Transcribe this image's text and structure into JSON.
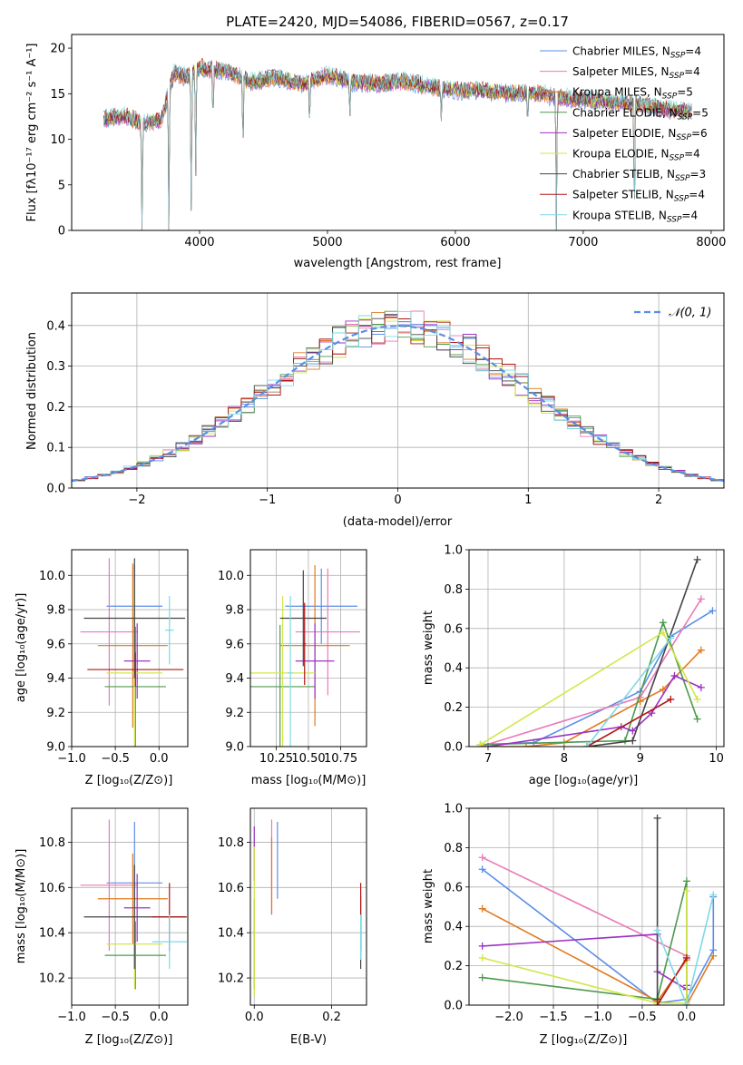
{
  "colors": {
    "chabrier_miles": "#5b8ee6",
    "salpeter_miles": "#e97ab8",
    "kroupa_miles": "#e07a1f",
    "chabrier_elodie": "#4c9a4c",
    "salpeter_elodie": "#9b32c2",
    "kroupa_elodie": "#d4e64a",
    "chabrier_stelib": "#444444",
    "salpeter_stelib": "#b01515",
    "kroupa_stelib": "#7fd9e6",
    "normal_curve": "#5b8ee6"
  },
  "chart_data": [
    {
      "id": "spectrum",
      "type": "line",
      "title": "PLATE=2420, MJD=54086, FIBERID=0567, z=0.17",
      "xlabel": "wavelength [Angstrom, rest frame]",
      "ylabel": "Flux [fλ10⁻¹⁷ erg cm⁻² s⁻¹ A⁻¹]",
      "xlim": [
        3000,
        8100
      ],
      "ylim": [
        0,
        21.5
      ],
      "x_ticks": [
        4000,
        5000,
        6000,
        7000,
        8000
      ],
      "y_ticks": [
        0,
        5,
        10,
        15,
        20
      ],
      "grid": false,
      "legend_position": "right",
      "legend": [
        {
          "label": "Chabrier MILES, N",
          "sub": "SSP",
          "suffix": "=4",
          "color_key": "chabrier_miles"
        },
        {
          "label": "Salpeter MILES, N",
          "sub": "SSP",
          "suffix": "=4",
          "color_key": "salpeter_miles"
        },
        {
          "label": "Kroupa MILES, N",
          "sub": "SSP",
          "suffix": "=5",
          "color_key": "kroupa_miles"
        },
        {
          "label": "Chabrier ELODIE, N",
          "sub": "SSP",
          "suffix": "=5",
          "color_key": "chabrier_elodie"
        },
        {
          "label": "Salpeter ELODIE, N",
          "sub": "SSP",
          "suffix": "=6",
          "color_key": "salpeter_elodie"
        },
        {
          "label": "Kroupa ELODIE, N",
          "sub": "SSP",
          "suffix": "=4",
          "color_key": "kroupa_elodie"
        },
        {
          "label": "Chabrier STELIB, N",
          "sub": "SSP",
          "suffix": "=3",
          "color_key": "chabrier_stelib"
        },
        {
          "label": "Salpeter STELIB, N",
          "sub": "SSP",
          "suffix": "=4",
          "color_key": "salpeter_stelib"
        },
        {
          "label": "Kroupa STELIB, N",
          "sub": "SSP",
          "suffix": "=4",
          "color_key": "kroupa_stelib"
        }
      ],
      "continuum": [
        [
          3250,
          12.2
        ],
        [
          3400,
          12.6
        ],
        [
          3550,
          11.8
        ],
        [
          3700,
          12.1
        ],
        [
          3800,
          17.3
        ],
        [
          3900,
          16.8
        ],
        [
          4000,
          17.9
        ],
        [
          4200,
          17.5
        ],
        [
          4400,
          16.3
        ],
        [
          4600,
          16.8
        ],
        [
          4800,
          16.1
        ],
        [
          5000,
          17.0
        ],
        [
          5200,
          16.3
        ],
        [
          5400,
          16.1
        ],
        [
          5600,
          16.4
        ],
        [
          5800,
          15.8
        ],
        [
          6000,
          15.4
        ],
        [
          6200,
          15.4
        ],
        [
          6400,
          15.0
        ],
        [
          6600,
          15.2
        ],
        [
          6800,
          14.6
        ],
        [
          7000,
          14.4
        ],
        [
          7200,
          14.1
        ],
        [
          7400,
          13.9
        ],
        [
          7600,
          13.4
        ],
        [
          7850,
          13.0
        ]
      ],
      "absorption_lines": [
        {
          "x": 3550,
          "y": 0
        },
        {
          "x": 3760,
          "y": 0
        },
        {
          "x": 3935,
          "y": 0
        },
        {
          "x": 3970,
          "y": 6
        },
        {
          "x": 4105,
          "y": 11
        },
        {
          "x": 4340,
          "y": 8
        },
        {
          "x": 4860,
          "y": 11
        },
        {
          "x": 5175,
          "y": 12
        },
        {
          "x": 5890,
          "y": 12
        },
        {
          "x": 6565,
          "y": 11
        },
        {
          "x": 6790,
          "y": 0
        },
        {
          "x": 7400,
          "y": 0
        }
      ]
    },
    {
      "id": "residuals",
      "type": "bar",
      "xlabel": "(data-model)/error",
      "ylabel": "Normed distribution",
      "xlim": [
        -2.5,
        2.5
      ],
      "ylim": [
        0,
        0.48
      ],
      "x_ticks": [
        -2,
        -1,
        0,
        1,
        2
      ],
      "y_ticks": [
        0.0,
        0.1,
        0.2,
        0.3,
        0.4
      ],
      "grid": true,
      "bin_width": 0.1,
      "bin_start": -2.5,
      "legend": [
        {
          "label": "𝒩(0, 1)",
          "color_key": "normal_curve",
          "dashed": true
        }
      ],
      "legend_position": "top-right"
    },
    {
      "id": "age_vs_Z",
      "type": "scatter",
      "xlabel": "Z [log₁₀(Z/Z⊙)]",
      "ylabel": "age  [log₁₀(age/yr)]",
      "xlim": [
        -1.0,
        0.33
      ],
      "ylim": [
        9.0,
        10.15
      ],
      "x_ticks": [
        -1.0,
        -0.5,
        0.0
      ],
      "y_ticks": [
        9.0,
        9.2,
        9.4,
        9.6,
        9.8,
        10.0
      ],
      "grid": true,
      "points": [
        {
          "x": -0.28,
          "y": 9.82,
          "xerr": 0.32,
          "yerr": 0.24,
          "color_key": "chabrier_miles"
        },
        {
          "x": -0.57,
          "y": 9.67,
          "xerr": 0.33,
          "yerr": 0.43,
          "color_key": "salpeter_miles"
        },
        {
          "x": -0.3,
          "y": 9.59,
          "xerr": 0.4,
          "yerr": 0.48,
          "color_key": "kroupa_miles"
        },
        {
          "x": -0.27,
          "y": 9.35,
          "xerr": 0.35,
          "yerr": 0.35,
          "color_key": "chabrier_elodie"
        },
        {
          "x": -0.25,
          "y": 9.5,
          "xerr": 0.15,
          "yerr": 0.22,
          "color_key": "salpeter_elodie"
        },
        {
          "x": -0.28,
          "y": 9.43,
          "xerr": 0.32,
          "yerr": 0.54,
          "color_key": "kroupa_elodie"
        },
        {
          "x": -0.28,
          "y": 9.75,
          "xerr": 0.58,
          "yerr": 0.35,
          "color_key": "chabrier_stelib"
        },
        {
          "x": -0.27,
          "y": 9.45,
          "xerr": 0.55,
          "yerr": 0.1,
          "color_key": "salpeter_stelib"
        },
        {
          "x": 0.12,
          "y": 9.68,
          "xerr": 0.05,
          "yerr": 0.2,
          "color_key": "kroupa_stelib"
        }
      ]
    },
    {
      "id": "age_vs_mass",
      "type": "scatter",
      "xlabel": "mass [log₁₀(M/M⊙)]",
      "ylabel": "",
      "xlim": [
        10.05,
        10.95
      ],
      "ylim": [
        9.0,
        10.15
      ],
      "x_ticks": [
        10.25,
        10.5,
        10.75
      ],
      "y_ticks": [
        9.0,
        9.2,
        9.4,
        9.6,
        9.8,
        10.0
      ],
      "grid": true,
      "points": [
        {
          "x": 10.6,
          "y": 9.82,
          "xerr": 0.28,
          "yerr": 0.22,
          "color_key": "chabrier_miles"
        },
        {
          "x": 10.65,
          "y": 9.67,
          "xerr": 0.25,
          "yerr": 0.37,
          "color_key": "salpeter_miles"
        },
        {
          "x": 10.55,
          "y": 9.59,
          "xerr": 0.27,
          "yerr": 0.47,
          "color_key": "kroupa_miles"
        },
        {
          "x": 10.28,
          "y": 9.35,
          "xerr": 0.27,
          "yerr": 0.36,
          "color_key": "chabrier_elodie"
        },
        {
          "x": 10.55,
          "y": 9.5,
          "xerr": 0.15,
          "yerr": 0.22,
          "color_key": "salpeter_elodie"
        },
        {
          "x": 10.3,
          "y": 9.43,
          "xerr": 0.25,
          "yerr": 0.45,
          "color_key": "kroupa_elodie"
        },
        {
          "x": 10.46,
          "y": 9.75,
          "xerr": 0.18,
          "yerr": 0.28,
          "color_key": "chabrier_stelib"
        },
        {
          "x": 10.47,
          "y": 9.6,
          "xerr": 0.01,
          "yerr": 0.24,
          "color_key": "salpeter_stelib"
        },
        {
          "x": 10.36,
          "y": 9.43,
          "xerr": 0.02,
          "yerr": 0.45,
          "color_key": "kroupa_stelib"
        }
      ]
    },
    {
      "id": "massweight_vs_age",
      "type": "line",
      "xlabel": "age  [log₁₀(age/yr)]",
      "ylabel": "mass weight",
      "xlim": [
        6.75,
        10.1
      ],
      "ylim": [
        0,
        1.0
      ],
      "x_ticks": [
        7,
        8,
        9,
        10
      ],
      "y_ticks": [
        0.0,
        0.2,
        0.4,
        0.6,
        0.8,
        1.0
      ],
      "grid": true,
      "series": [
        {
          "color_key": "chabrier_miles",
          "x": [
            6.9,
            7.6,
            9.0,
            9.4,
            9.95
          ],
          "y": [
            0.01,
            0.02,
            0.28,
            0.56,
            0.69
          ]
        },
        {
          "color_key": "salpeter_miles",
          "x": [
            6.9,
            9.0,
            9.8
          ],
          "y": [
            0.0,
            0.25,
            0.75
          ]
        },
        {
          "color_key": "kroupa_miles",
          "x": [
            6.9,
            7.5,
            8.0,
            9.0,
            9.3,
            9.8
          ],
          "y": [
            0.0,
            0.0,
            0.02,
            0.23,
            0.29,
            0.49
          ]
        },
        {
          "color_key": "chabrier_elodie",
          "x": [
            6.9,
            8.8,
            9.3,
            9.75
          ],
          "y": [
            0.01,
            0.03,
            0.63,
            0.14
          ]
        },
        {
          "color_key": "salpeter_elodie",
          "x": [
            7.0,
            8.75,
            8.9,
            9.15,
            9.45,
            9.8
          ],
          "y": [
            0.0,
            0.1,
            0.08,
            0.17,
            0.36,
            0.3
          ]
        },
        {
          "color_key": "kroupa_elodie",
          "x": [
            6.9,
            9.3,
            9.75
          ],
          "y": [
            0.01,
            0.58,
            0.24
          ]
        },
        {
          "color_key": "chabrier_stelib",
          "x": [
            8.3,
            8.9,
            9.75
          ],
          "y": [
            0.0,
            0.03,
            0.95
          ]
        },
        {
          "color_key": "salpeter_stelib",
          "x": [
            8.3,
            9.4
          ],
          "y": [
            0.0,
            0.24
          ]
        },
        {
          "color_key": "kroupa_stelib",
          "x": [
            8.3,
            9.4
          ],
          "y": [
            0.0,
            0.55
          ]
        }
      ]
    },
    {
      "id": "mass_vs_Z",
      "type": "scatter",
      "xlabel": "Z [log₁₀(Z/Z⊙)]",
      "ylabel": "mass [log₁₀(M/M⊙)]",
      "xlim": [
        -1.0,
        0.33
      ],
      "ylim": [
        10.08,
        10.95
      ],
      "x_ticks": [
        -1.0,
        -0.5,
        0.0
      ],
      "y_ticks": [
        10.2,
        10.4,
        10.6,
        10.8
      ],
      "grid": true,
      "points": [
        {
          "x": -0.28,
          "y": 10.62,
          "xerr": 0.32,
          "yerr": 0.27,
          "color_key": "chabrier_miles"
        },
        {
          "x": -0.57,
          "y": 10.61,
          "xerr": 0.33,
          "yerr": 0.29,
          "color_key": "salpeter_miles"
        },
        {
          "x": -0.3,
          "y": 10.55,
          "xerr": 0.4,
          "yerr": 0.2,
          "color_key": "kroupa_miles"
        },
        {
          "x": -0.27,
          "y": 10.3,
          "xerr": 0.35,
          "yerr": 0.15,
          "color_key": "chabrier_elodie"
        },
        {
          "x": -0.25,
          "y": 10.51,
          "xerr": 0.15,
          "yerr": 0.15,
          "color_key": "salpeter_elodie"
        },
        {
          "x": -0.28,
          "y": 10.35,
          "xerr": 0.32,
          "yerr": 0.2,
          "color_key": "kroupa_elodie"
        },
        {
          "x": -0.28,
          "y": 10.47,
          "xerr": 0.58,
          "yerr": 0.23,
          "color_key": "chabrier_stelib"
        },
        {
          "x": 0.12,
          "y": 10.47,
          "xerr": 0.2,
          "yerr": 0.15,
          "color_key": "salpeter_stelib"
        },
        {
          "x": 0.12,
          "y": 10.36,
          "xerr": 0.2,
          "yerr": 0.12,
          "color_key": "kroupa_stelib"
        }
      ]
    },
    {
      "id": "mass_vs_EBV",
      "type": "scatter",
      "xlabel": "E(B-V)",
      "ylabel": "",
      "xlim": [
        -0.01,
        0.29
      ],
      "ylim": [
        10.08,
        10.95
      ],
      "x_ticks": [
        0.0,
        0.2
      ],
      "y_ticks": [
        10.2,
        10.4,
        10.6,
        10.8
      ],
      "grid": true,
      "points": [
        {
          "x": 0.06,
          "y": 10.72,
          "xerr": 0.0,
          "yerr": 0.17,
          "color_key": "chabrier_miles"
        },
        {
          "x": 0.045,
          "y": 10.69,
          "xerr": 0.0,
          "yerr": 0.21,
          "color_key": "salpeter_miles"
        },
        {
          "x": 0.045,
          "y": 10.65,
          "xerr": 0.0,
          "yerr": 0.17,
          "color_key": "kroupa_miles"
        },
        {
          "x": 0.0,
          "y": 10.35,
          "xerr": 0.0,
          "yerr": 0.2,
          "color_key": "chabrier_elodie"
        },
        {
          "x": 0.0,
          "y": 10.75,
          "xerr": 0.0,
          "yerr": 0.12,
          "color_key": "salpeter_elodie"
        },
        {
          "x": 0.0,
          "y": 10.45,
          "xerr": 0.0,
          "yerr": 0.33,
          "color_key": "kroupa_elodie"
        },
        {
          "x": 0.275,
          "y": 10.4,
          "xerr": 0.0,
          "yerr": 0.16,
          "color_key": "chabrier_stelib"
        },
        {
          "x": 0.275,
          "y": 10.47,
          "xerr": 0.0,
          "yerr": 0.15,
          "color_key": "salpeter_stelib"
        },
        {
          "x": 0.275,
          "y": 10.38,
          "xerr": 0.0,
          "yerr": 0.1,
          "color_key": "kroupa_stelib"
        }
      ]
    },
    {
      "id": "massweight_vs_Z",
      "type": "line",
      "xlabel": "Z [log₁₀(Z/Z⊙)]",
      "ylabel": "mass weight",
      "xlim": [
        -2.45,
        0.42
      ],
      "ylim": [
        0,
        1.0
      ],
      "x_ticks": [
        -2.0,
        -1.5,
        -1.0,
        -0.5,
        0.0
      ],
      "y_ticks": [
        0.0,
        0.2,
        0.4,
        0.6,
        0.8,
        1.0
      ],
      "grid": true,
      "series": [
        {
          "color_key": "chabrier_miles",
          "x": [
            -2.3,
            -0.33,
            0.0,
            0.3,
            0.3
          ],
          "y": [
            0.69,
            0.01,
            0.03,
            0.28,
            0.55
          ]
        },
        {
          "color_key": "salpeter_miles",
          "x": [
            -2.3,
            0.0
          ],
          "y": [
            0.75,
            0.25
          ]
        },
        {
          "color_key": "kroupa_miles",
          "x": [
            -2.3,
            -0.33,
            -0.33,
            0.0,
            0.0,
            0.3
          ],
          "y": [
            0.49,
            0.02,
            0.02,
            0.23,
            0.0,
            0.25
          ]
        },
        {
          "color_key": "chabrier_elodie",
          "x": [
            -2.3,
            -0.33,
            0.0,
            0.0
          ],
          "y": [
            0.14,
            0.03,
            0.63,
            0.0
          ]
        },
        {
          "color_key": "salpeter_elodie",
          "x": [
            -2.3,
            -0.33,
            -0.33,
            0.0,
            0.0
          ],
          "y": [
            0.3,
            0.36,
            0.17,
            0.08,
            0.1
          ]
        },
        {
          "color_key": "kroupa_elodie",
          "x": [
            -2.3,
            -0.33,
            0.0,
            0.0
          ],
          "y": [
            0.24,
            0.01,
            0.01,
            0.58
          ]
        },
        {
          "color_key": "chabrier_stelib",
          "x": [
            -0.33,
            -0.33
          ],
          "y": [
            0.95,
            0.03
          ]
        },
        {
          "color_key": "salpeter_stelib",
          "x": [
            -0.33,
            0.0
          ],
          "y": [
            0.0,
            0.24
          ]
        },
        {
          "color_key": "kroupa_stelib",
          "x": [
            -0.33,
            0.0,
            0.3
          ],
          "y": [
            0.38,
            0.0,
            0.56
          ]
        }
      ]
    }
  ]
}
